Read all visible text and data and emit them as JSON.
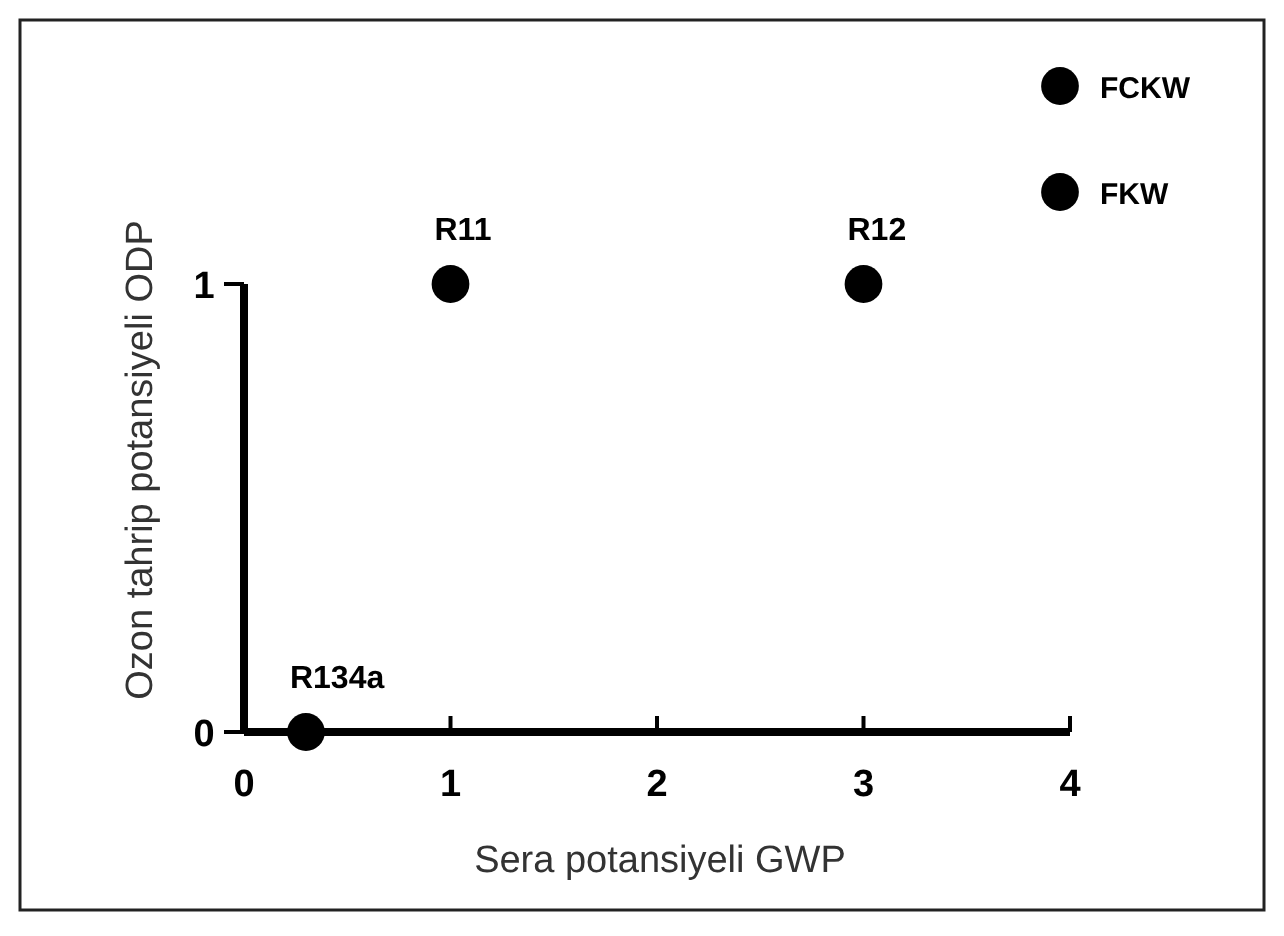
{
  "chart_data": {
    "type": "scatter",
    "xlabel": "Sera potansiyeli GWP",
    "ylabel": "Ozon tahrip potansiyeli ODP",
    "xlim": [
      0,
      4
    ],
    "ylim": [
      0,
      1
    ],
    "xticks": [
      0,
      1,
      2,
      3,
      4
    ],
    "yticks": [
      0,
      1
    ],
    "marker": "circle",
    "legend": "top right",
    "grid": false,
    "series": [
      {
        "name": "FCKW",
        "color": "#000000",
        "x": [
          1,
          3
        ],
        "values": [
          1,
          1
        ]
      },
      {
        "name": "FKW",
        "color": "#000000",
        "x": [
          0.3
        ],
        "values": [
          0
        ]
      }
    ],
    "annotations": [
      {
        "text": "R11",
        "x": 1,
        "y": 1
      },
      {
        "text": "R12",
        "x": 3,
        "y": 1
      },
      {
        "text": "R134a",
        "x": 0.3,
        "y": 0
      }
    ]
  }
}
